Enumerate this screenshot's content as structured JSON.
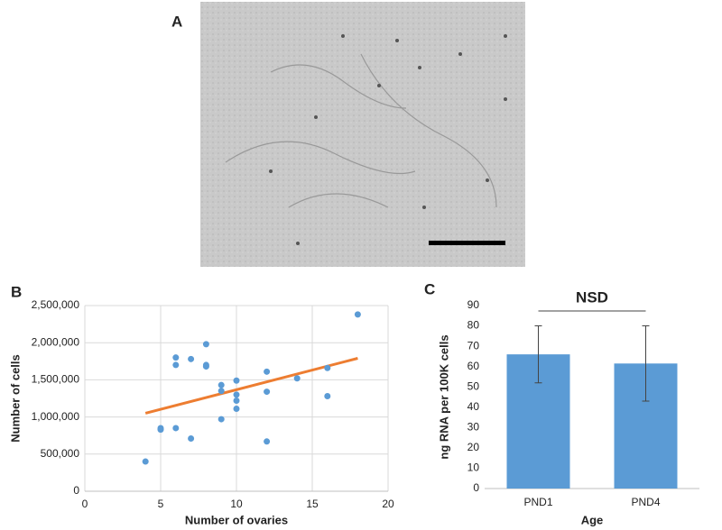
{
  "panels": [
    {
      "label": "A"
    }
  ],
  "chart_data": [
    {
      "type": "scatter",
      "label": "B",
      "xlabel": "Number of ovaries",
      "ylabel": "Number of cells",
      "x": [
        4,
        5,
        5,
        6,
        6,
        6,
        7,
        7,
        8,
        8,
        8,
        9,
        9,
        9,
        10,
        10,
        10,
        10,
        12,
        12,
        12,
        14,
        16,
        16,
        18
      ],
      "values": [
        400000,
        850000,
        830000,
        1800000,
        1700000,
        850000,
        1780000,
        710000,
        1980000,
        1700000,
        1680000,
        1430000,
        1350000,
        970000,
        1490000,
        1300000,
        1220000,
        1110000,
        1610000,
        1340000,
        670000,
        1520000,
        1660000,
        1280000,
        2380000
      ],
      "color": "#5b9bd5",
      "trendline": {
        "x": [
          4,
          18
        ],
        "values": [
          1050000,
          1790000
        ],
        "color": "#ed7d31"
      },
      "xlim": [
        0,
        20
      ],
      "xticks": [
        0,
        5,
        10,
        15,
        20
      ],
      "ylim": [
        0,
        2500000
      ],
      "yticks": [
        0,
        {
          "value": 500000,
          "label": "500,000"
        },
        {
          "value": 1000000,
          "label": "1,000,000"
        },
        {
          "value": 1500000,
          "label": "1,500,000"
        },
        {
          "value": 2000000,
          "label": "2,000,000"
        },
        {
          "value": 2500000,
          "label": "2,500,000"
        }
      ],
      "grid": true
    },
    {
      "type": "bar",
      "label": "C",
      "xlabel": "Age",
      "ylabel": "ng RNA per 100K cells",
      "annotation": "NSD",
      "categories": [
        "PND1",
        "PND4"
      ],
      "values": [
        66,
        61.5
      ],
      "errors": [
        14,
        18.5
      ],
      "color": "#5b9bd5",
      "ylim": [
        0,
        90
      ],
      "yticks": [
        0,
        10,
        20,
        30,
        40,
        50,
        60,
        70,
        80,
        90
      ],
      "grid": false
    }
  ]
}
